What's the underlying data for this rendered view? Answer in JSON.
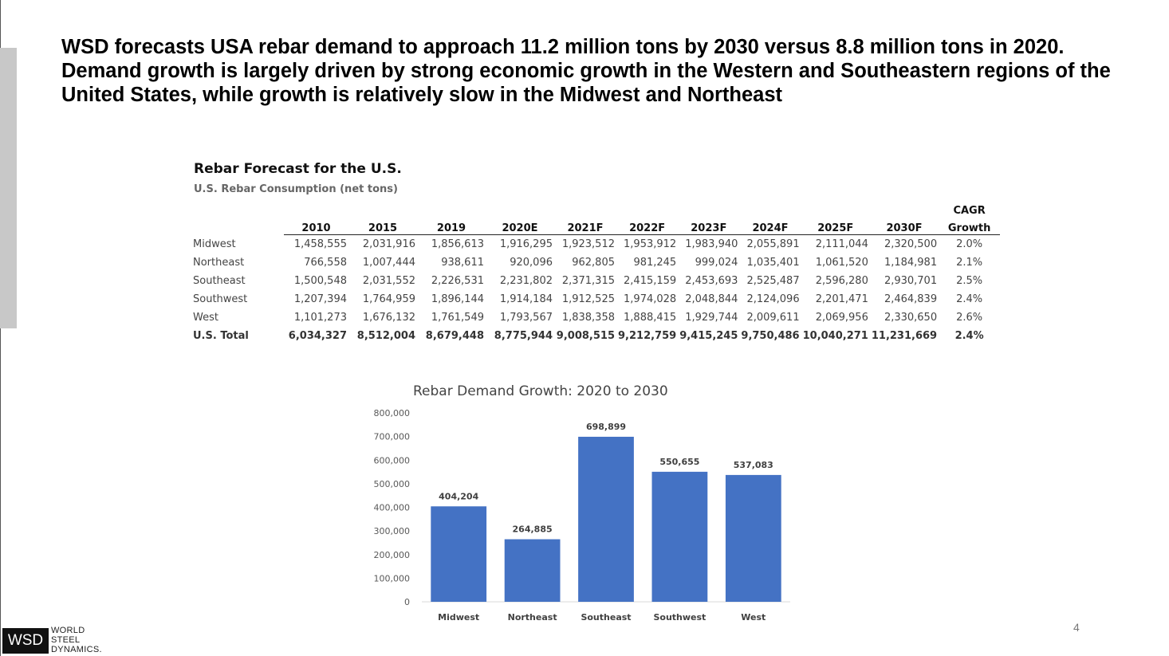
{
  "headline": "WSD forecasts USA rebar demand to approach 11.2 million tons by 2030 versus 8.8 million tons in 2020. Demand growth is largely driven by strong economic growth in the Western and Southeastern regions of the United States, while growth is relatively slow in the Midwest and Northeast",
  "table": {
    "title": "Rebar Forecast for the U.S.",
    "subtitle": "U.S. Rebar Consumption (net tons)",
    "cagr_header_line1": "CAGR",
    "columns": [
      "2010",
      "2015",
      "2019",
      "2020E",
      "2021F",
      "2022F",
      "2023F",
      "2024F",
      "2025F",
      "2030F",
      "Growth"
    ],
    "rows": [
      {
        "label": "Midwest",
        "values": [
          "1,458,555",
          "2,031,916",
          "1,856,613",
          "1,916,295",
          "1,923,512",
          "1,953,912",
          "1,983,940",
          "2,055,891",
          "2,111,044",
          "2,320,500",
          "2.0%"
        ]
      },
      {
        "label": "Northeast",
        "values": [
          "766,558",
          "1,007,444",
          "938,611",
          "920,096",
          "962,805",
          "981,245",
          "999,024",
          "1,035,401",
          "1,061,520",
          "1,184,981",
          "2.1%"
        ]
      },
      {
        "label": "Southeast",
        "values": [
          "1,500,548",
          "2,031,552",
          "2,226,531",
          "2,231,802",
          "2,371,315",
          "2,415,159",
          "2,453,693",
          "2,525,487",
          "2,596,280",
          "2,930,701",
          "2.5%"
        ]
      },
      {
        "label": "Southwest",
        "values": [
          "1,207,394",
          "1,764,959",
          "1,896,144",
          "1,914,184",
          "1,912,525",
          "1,974,028",
          "2,048,844",
          "2,124,096",
          "2,201,471",
          "2,464,839",
          "2.4%"
        ]
      },
      {
        "label": "West",
        "values": [
          "1,101,273",
          "1,676,132",
          "1,761,549",
          "1,793,567",
          "1,838,358",
          "1,888,415",
          "1,929,744",
          "2,009,611",
          "2,069,956",
          "2,330,650",
          "2.6%"
        ]
      },
      {
        "label": "U.S. Total",
        "values": [
          "6,034,327",
          "8,512,004",
          "8,679,448",
          "8,775,944",
          "9,008,515",
          "9,212,759",
          "9,415,245",
          "9,750,486",
          "10,040,271",
          "11,231,669",
          "2.4%"
        ]
      }
    ]
  },
  "chart_data": {
    "type": "bar",
    "title": "Rebar Demand Growth: 2020 to 2030",
    "categories": [
      "Midwest",
      "Northeast",
      "Southeast",
      "Southwest",
      "West"
    ],
    "values": [
      404204,
      264885,
      698899,
      550655,
      537083
    ],
    "value_labels": [
      "404,204",
      "264,885",
      "698,899",
      "550,655",
      "537,083"
    ],
    "ylim": [
      0,
      800000
    ],
    "yticks": [
      "0",
      "100,000",
      "200,000",
      "300,000",
      "400,000",
      "500,000",
      "600,000",
      "700,000",
      "800,000"
    ],
    "grid": false,
    "bar_color": "#4472C4",
    "xlabel": "",
    "ylabel": ""
  },
  "page_number": "4",
  "logo": {
    "mark": "WSD",
    "line1": "WORLD",
    "line2": "STEEL",
    "line3": "DYNAMICS."
  }
}
